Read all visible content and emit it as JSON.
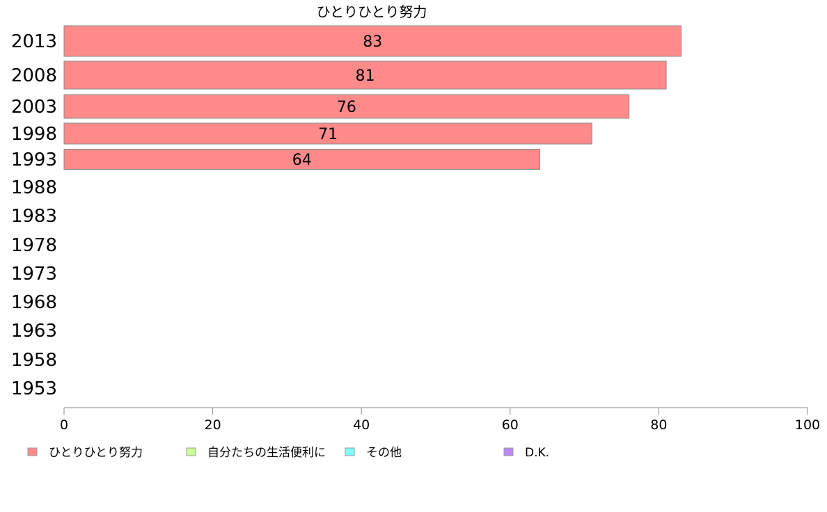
{
  "chart_data": {
    "type": "bar",
    "orientation": "horizontal",
    "title": "ひとりひとり努力",
    "categories": [
      "2013",
      "2008",
      "2003",
      "1998",
      "1993",
      "1988",
      "1983",
      "1978",
      "1973",
      "1968",
      "1963",
      "1958",
      "1953"
    ],
    "series": [
      {
        "name": "ひとりひとり努力",
        "color": "#ff8a8a",
        "values": [
          83,
          81,
          76,
          71,
          64,
          null,
          null,
          null,
          null,
          null,
          null,
          null,
          null
        ]
      }
    ],
    "xlim": [
      0,
      100
    ],
    "xticks": [
      "0",
      "20",
      "40",
      "60",
      "80",
      "100"
    ],
    "grid": false,
    "legend_position": "bottom"
  },
  "legend": [
    {
      "label": "ひとりひとり努力",
      "color": "#ff8a8a"
    },
    {
      "label": "自分たちの生活便利に",
      "color": "#ccff99"
    },
    {
      "label": "その他",
      "color": "#80ffff"
    },
    {
      "label": "D.K.",
      "color": "#bb88ff"
    }
  ]
}
